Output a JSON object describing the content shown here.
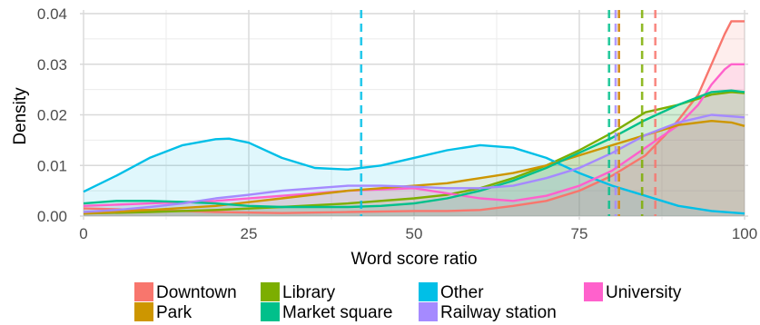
{
  "chart_data": {
    "type": "area",
    "title": "",
    "xlabel": "Word score ratio",
    "ylabel": "Density",
    "xlim": [
      0,
      100
    ],
    "ylim": [
      0,
      0.04
    ],
    "x_ticks": [
      0,
      25,
      50,
      75,
      100
    ],
    "y_ticks": [
      0,
      0.01,
      0.02,
      0.03,
      0.04
    ],
    "x_tick_labels": [
      "0",
      "25",
      "50",
      "75",
      "100"
    ],
    "y_tick_labels": [
      "0.00",
      "0.01",
      "0.02",
      "0.03",
      "0.04"
    ],
    "grid": true,
    "legend_position": "bottom",
    "series": [
      {
        "name": "Downtown",
        "color": "#F8766D",
        "mean": 86.5,
        "points": [
          [
            0,
            0.0015
          ],
          [
            10,
            0.0012
          ],
          [
            20,
            0.0008
          ],
          [
            30,
            0.0006
          ],
          [
            40,
            0.0008
          ],
          [
            50,
            0.001
          ],
          [
            55,
            0.001
          ],
          [
            60,
            0.0012
          ],
          [
            65,
            0.002
          ],
          [
            70,
            0.003
          ],
          [
            75,
            0.005
          ],
          [
            80,
            0.008
          ],
          [
            85,
            0.012
          ],
          [
            88,
            0.016
          ],
          [
            90,
            0.019
          ],
          [
            93,
            0.024
          ],
          [
            95,
            0.03
          ],
          [
            97,
            0.036
          ],
          [
            98,
            0.0385
          ],
          [
            100,
            0.0385
          ]
        ]
      },
      {
        "name": "Library",
        "color": "#7CAE00",
        "mean": 84.5,
        "points": [
          [
            0,
            0.0005
          ],
          [
            10,
            0.0008
          ],
          [
            20,
            0.0012
          ],
          [
            30,
            0.0018
          ],
          [
            40,
            0.0025
          ],
          [
            50,
            0.0035
          ],
          [
            55,
            0.0042
          ],
          [
            60,
            0.0055
          ],
          [
            65,
            0.0075
          ],
          [
            70,
            0.01
          ],
          [
            75,
            0.013
          ],
          [
            80,
            0.0165
          ],
          [
            85,
            0.0205
          ],
          [
            90,
            0.022
          ],
          [
            95,
            0.024
          ],
          [
            98,
            0.0245
          ],
          [
            100,
            0.0243
          ]
        ]
      },
      {
        "name": "Other",
        "color": "#00BFE7",
        "mean": 42,
        "points": [
          [
            0,
            0.0048
          ],
          [
            5,
            0.008
          ],
          [
            10,
            0.0115
          ],
          [
            15,
            0.014
          ],
          [
            20,
            0.0152
          ],
          [
            22,
            0.0153
          ],
          [
            25,
            0.0145
          ],
          [
            30,
            0.0115
          ],
          [
            35,
            0.0095
          ],
          [
            40,
            0.0092
          ],
          [
            45,
            0.01
          ],
          [
            50,
            0.0115
          ],
          [
            55,
            0.013
          ],
          [
            60,
            0.014
          ],
          [
            65,
            0.0135
          ],
          [
            70,
            0.0115
          ],
          [
            75,
            0.0085
          ],
          [
            80,
            0.006
          ],
          [
            85,
            0.004
          ],
          [
            90,
            0.002
          ],
          [
            95,
            0.001
          ],
          [
            100,
            0.0005
          ]
        ]
      },
      {
        "name": "University",
        "color": "#FF61CC",
        "mean": 81,
        "points": [
          [
            0,
            0.002
          ],
          [
            10,
            0.0025
          ],
          [
            20,
            0.003
          ],
          [
            30,
            0.004
          ],
          [
            40,
            0.005
          ],
          [
            50,
            0.0055
          ],
          [
            55,
            0.0045
          ],
          [
            60,
            0.0035
          ],
          [
            65,
            0.003
          ],
          [
            70,
            0.004
          ],
          [
            75,
            0.006
          ],
          [
            80,
            0.009
          ],
          [
            85,
            0.0135
          ],
          [
            90,
            0.018
          ],
          [
            93,
            0.022
          ],
          [
            95,
            0.026
          ],
          [
            97,
            0.029
          ],
          [
            98,
            0.03
          ],
          [
            100,
            0.03
          ]
        ]
      },
      {
        "name": "Park",
        "color": "#CD9600",
        "mean": 81,
        "points": [
          [
            0,
            0.0005
          ],
          [
            10,
            0.0012
          ],
          [
            20,
            0.002
          ],
          [
            30,
            0.0035
          ],
          [
            40,
            0.005
          ],
          [
            45,
            0.0055
          ],
          [
            50,
            0.006
          ],
          [
            55,
            0.0065
          ],
          [
            60,
            0.0075
          ],
          [
            65,
            0.0085
          ],
          [
            70,
            0.01
          ],
          [
            75,
            0.012
          ],
          [
            80,
            0.014
          ],
          [
            85,
            0.016
          ],
          [
            90,
            0.018
          ],
          [
            95,
            0.0188
          ],
          [
            98,
            0.0185
          ],
          [
            100,
            0.0178
          ]
        ]
      },
      {
        "name": "Market square",
        "color": "#00C08B",
        "mean": 79.5,
        "points": [
          [
            0,
            0.0025
          ],
          [
            5,
            0.003
          ],
          [
            10,
            0.003
          ],
          [
            15,
            0.0028
          ],
          [
            20,
            0.0025
          ],
          [
            25,
            0.002
          ],
          [
            30,
            0.0018
          ],
          [
            40,
            0.0018
          ],
          [
            45,
            0.002
          ],
          [
            50,
            0.0025
          ],
          [
            55,
            0.0035
          ],
          [
            60,
            0.005
          ],
          [
            65,
            0.007
          ],
          [
            70,
            0.0095
          ],
          [
            75,
            0.0125
          ],
          [
            80,
            0.0155
          ],
          [
            85,
            0.019
          ],
          [
            90,
            0.022
          ],
          [
            95,
            0.0245
          ],
          [
            98,
            0.0248
          ],
          [
            100,
            0.0245
          ]
        ]
      },
      {
        "name": "Railway station",
        "color": "#A58AFF",
        "mean": 80.5,
        "points": [
          [
            0,
            0.0008
          ],
          [
            5,
            0.0012
          ],
          [
            10,
            0.0018
          ],
          [
            15,
            0.0025
          ],
          [
            20,
            0.0035
          ],
          [
            25,
            0.0042
          ],
          [
            30,
            0.005
          ],
          [
            35,
            0.0055
          ],
          [
            40,
            0.006
          ],
          [
            45,
            0.006
          ],
          [
            50,
            0.0058
          ],
          [
            55,
            0.0055
          ],
          [
            60,
            0.0055
          ],
          [
            65,
            0.006
          ],
          [
            70,
            0.0075
          ],
          [
            75,
            0.0095
          ],
          [
            80,
            0.0125
          ],
          [
            85,
            0.016
          ],
          [
            90,
            0.0185
          ],
          [
            95,
            0.02
          ],
          [
            100,
            0.0195
          ]
        ]
      }
    ]
  }
}
